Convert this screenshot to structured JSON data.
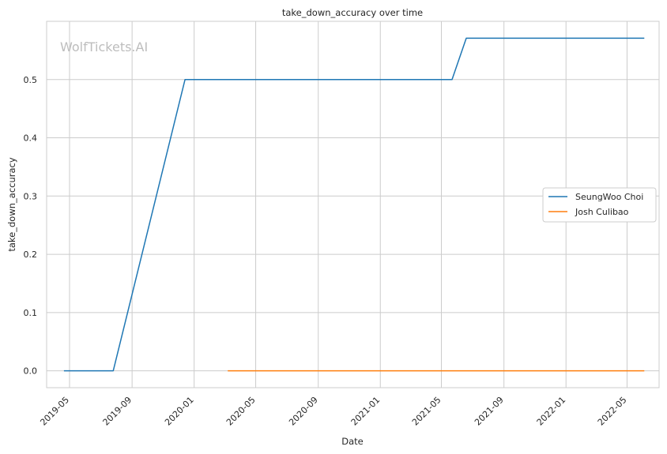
{
  "watermark": "WolfTickets.AI",
  "chart_data": {
    "type": "line",
    "title": "take_down_accuracy over time",
    "xlabel": "Date",
    "ylabel": "take_down_accuracy",
    "grid": true,
    "legend_position": "center-right",
    "x_ticks": [
      "2019-05",
      "2019-09",
      "2020-01",
      "2020-05",
      "2020-09",
      "2021-01",
      "2021-05",
      "2021-09",
      "2022-01",
      "2022-05"
    ],
    "y_ticks": [
      "0.0",
      "0.1",
      "0.2",
      "0.3",
      "0.4",
      "0.5"
    ],
    "xlim": [
      "2019-03-17",
      "2022-07-03"
    ],
    "ylim": [
      -0.029,
      0.6
    ],
    "series": [
      {
        "name": "SeungWoo Choi",
        "color": "#1f77b4",
        "points": [
          {
            "x": "2019-04-20",
            "y": 0.0
          },
          {
            "x": "2019-07-26",
            "y": 0.0
          },
          {
            "x": "2019-12-14",
            "y": 0.5
          },
          {
            "x": "2021-05-22",
            "y": 0.5
          },
          {
            "x": "2021-06-19",
            "y": 0.571
          },
          {
            "x": "2022-06-04",
            "y": 0.571
          }
        ]
      },
      {
        "name": "Josh Culibao",
        "color": "#ff7f0e",
        "points": [
          {
            "x": "2020-03-07",
            "y": 0.0
          },
          {
            "x": "2022-06-04",
            "y": 0.0
          }
        ]
      }
    ]
  }
}
